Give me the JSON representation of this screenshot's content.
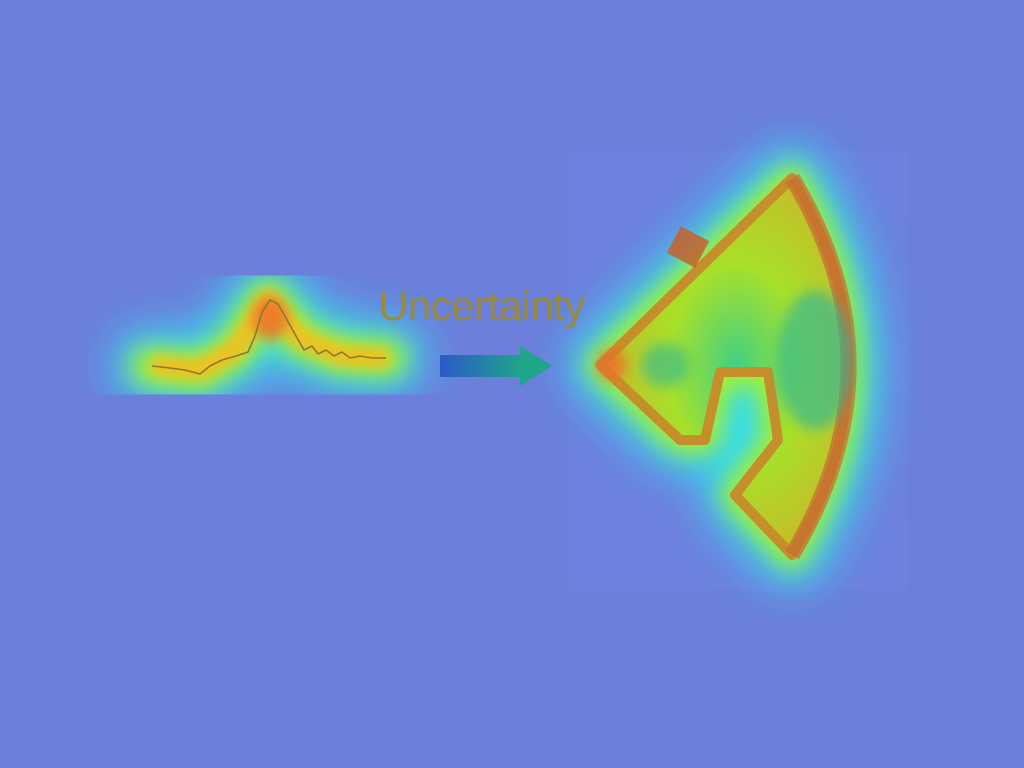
{
  "diagram": {
    "label": "Uncertainty"
  },
  "colors": {
    "background": "#6b7fdb",
    "heat_outer": "#2fe0f0",
    "heat_mid": "#a8f02a",
    "heat_core": "#f0c020",
    "heat_hot": "#f06a2a",
    "label_text": "#9a8a3a",
    "arrow_start": "#2c59c8",
    "arrow_end": "#1ea58a"
  },
  "icons": {
    "signal": "waveform-icon",
    "arrow": "right-arrow-icon",
    "sector": "fan-sector-icon"
  }
}
